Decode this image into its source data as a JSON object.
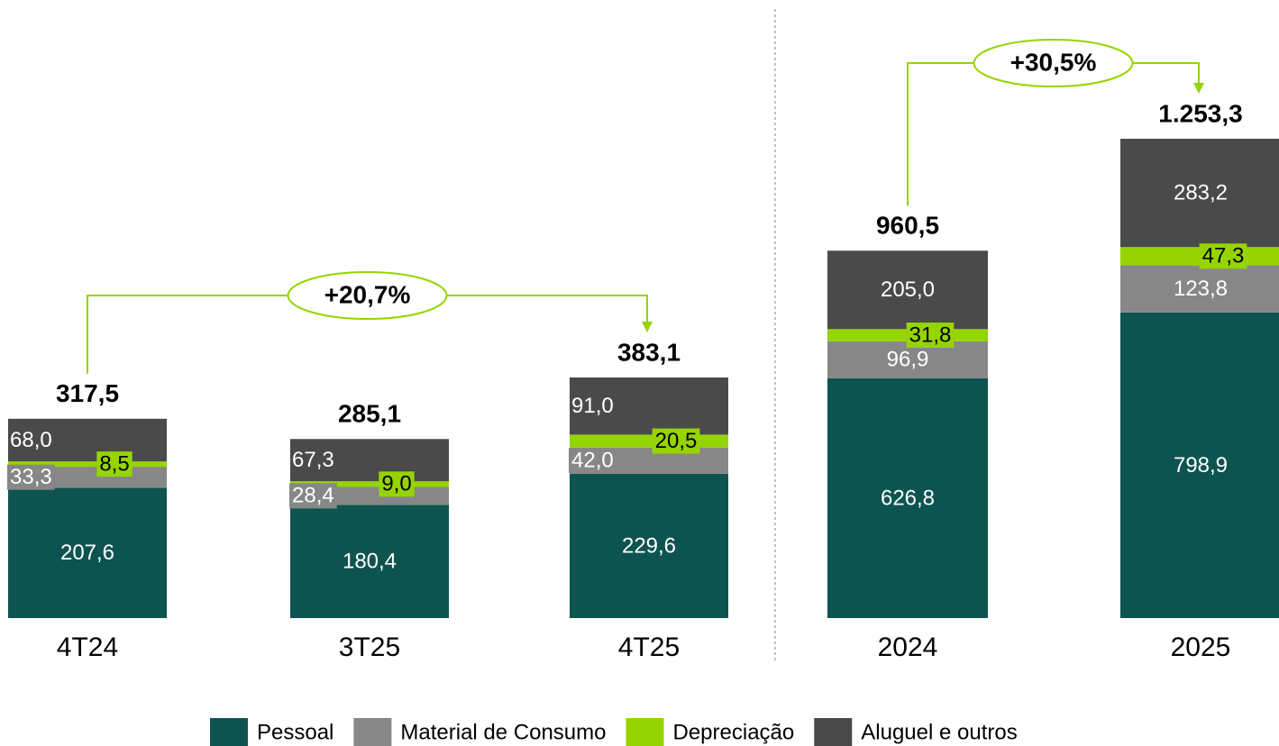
{
  "legend": [
    {
      "name": "Pessoal",
      "color": "#0d5450"
    },
    {
      "name": "Material de Consumo",
      "color": "#878787"
    },
    {
      "name": "Depreciação",
      "color": "#96d400"
    },
    {
      "name": "Aluguel e outros",
      "color": "#4a4a4a"
    }
  ],
  "chart_data": [
    {
      "type": "stacked_bar",
      "categories": [
        "4T24",
        "3T25",
        "4T25"
      ],
      "series": [
        {
          "values": [
            207.6,
            180.4,
            229.6
          ],
          "value_labels": [
            "207,6",
            "180,4",
            "229,6"
          ]
        },
        {
          "values": [
            33.3,
            28.4,
            42.0
          ],
          "value_labels": [
            "33,3",
            "28,4",
            "42,0"
          ]
        },
        {
          "values": [
            8.5,
            9.0,
            20.5
          ],
          "value_labels": [
            "8,5",
            "9,0",
            "20,5"
          ]
        },
        {
          "values": [
            68.0,
            67.3,
            91.0
          ],
          "value_labels": [
            "68,0",
            "67,3",
            "91,0"
          ]
        }
      ],
      "totals": [
        317.5,
        285.1,
        383.1
      ],
      "total_labels": [
        "317,5",
        "285,1",
        "383,1"
      ],
      "annotation": "+20,7%"
    },
    {
      "type": "stacked_bar",
      "categories": [
        "2024",
        "2025"
      ],
      "series": [
        {
          "values": [
            626.8,
            798.9
          ],
          "value_labels": [
            "626,8",
            "798,9"
          ]
        },
        {
          "values": [
            96.9,
            123.8
          ],
          "value_labels": [
            "96,9",
            "123,8"
          ]
        },
        {
          "values": [
            31.8,
            47.3
          ],
          "value_labels": [
            "31,8",
            "47,3"
          ]
        },
        {
          "values": [
            205.0,
            283.2
          ],
          "value_labels": [
            "205,0",
            "283,2"
          ]
        }
      ],
      "totals": [
        960.5,
        1253.3
      ],
      "total_labels": [
        "960,5",
        "1.253,3"
      ],
      "annotation": "+30,5%"
    }
  ]
}
